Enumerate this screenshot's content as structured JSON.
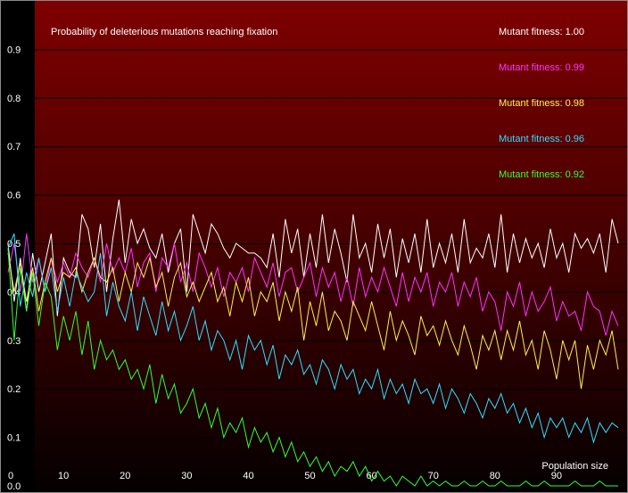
{
  "chart_data": {
    "type": "line",
    "title": "Probability of deleterious mutations reaching fixation",
    "xlabel": "Population size",
    "ylabel": "",
    "xlim": [
      1,
      100
    ],
    "ylim": [
      0,
      1
    ],
    "xticks": [
      "10",
      "20",
      "30",
      "40",
      "50",
      "60",
      "70",
      "80",
      "90"
    ],
    "xticks_values": [
      10,
      20,
      30,
      40,
      50,
      60,
      70,
      80,
      90
    ],
    "yticks": [
      "0.0",
      "0.1",
      "0.2",
      "0.3",
      "0.4",
      "0.5",
      "0.6",
      "0.7",
      "0.8",
      "0.9"
    ],
    "yticks_values": [
      0,
      0.1,
      0.2,
      0.3,
      0.4,
      0.5,
      0.6,
      0.7,
      0.8,
      0.9
    ],
    "x_origin_label": "0",
    "grid": true,
    "legend": "top-right",
    "x": [
      1,
      2,
      3,
      4,
      5,
      6,
      7,
      8,
      9,
      10,
      11,
      12,
      13,
      14,
      15,
      16,
      17,
      18,
      19,
      20,
      21,
      22,
      23,
      24,
      25,
      26,
      27,
      28,
      29,
      30,
      31,
      32,
      33,
      34,
      35,
      36,
      37,
      38,
      39,
      40,
      41,
      42,
      43,
      44,
      45,
      46,
      47,
      48,
      49,
      50,
      51,
      52,
      53,
      54,
      55,
      56,
      57,
      58,
      59,
      60,
      61,
      62,
      63,
      64,
      65,
      66,
      67,
      68,
      69,
      70,
      71,
      72,
      73,
      74,
      75,
      76,
      77,
      78,
      79,
      80,
      81,
      82,
      83,
      84,
      85,
      86,
      87,
      88,
      89,
      90,
      91,
      92,
      93,
      94,
      95,
      96,
      97,
      98,
      99,
      100
    ],
    "series": [
      {
        "name": "Mutant fitness: 1.00",
        "color": "#ffffff",
        "values": [
          0.5,
          0.38,
          0.47,
          0.36,
          0.48,
          0.4,
          0.46,
          0.52,
          0.35,
          0.47,
          0.44,
          0.43,
          0.56,
          0.53,
          0.45,
          0.54,
          0.4,
          0.51,
          0.59,
          0.46,
          0.55,
          0.5,
          0.53,
          0.49,
          0.47,
          0.52,
          0.44,
          0.5,
          0.53,
          0.4,
          0.56,
          0.52,
          0.48,
          0.54,
          0.52,
          0.49,
          0.47,
          0.5,
          0.49,
          0.48,
          0.48,
          0.47,
          0.45,
          0.52,
          0.43,
          0.55,
          0.48,
          0.53,
          0.43,
          0.52,
          0.45,
          0.56,
          0.46,
          0.53,
          0.48,
          0.42,
          0.56,
          0.47,
          0.5,
          0.44,
          0.54,
          0.47,
          0.53,
          0.43,
          0.51,
          0.46,
          0.52,
          0.44,
          0.55,
          0.45,
          0.5,
          0.46,
          0.52,
          0.44,
          0.55,
          0.46,
          0.49,
          0.47,
          0.52,
          0.45,
          0.56,
          0.44,
          0.52,
          0.46,
          0.51,
          0.47,
          0.5,
          0.45,
          0.53,
          0.47,
          0.5,
          0.44,
          0.52,
          0.49,
          0.51,
          0.48,
          0.52,
          0.44,
          0.55,
          0.5
        ]
      },
      {
        "name": "Mutant fitness: 0.99",
        "color": "#ff33ff",
        "values": [
          0.44,
          0.5,
          0.4,
          0.52,
          0.42,
          0.47,
          0.4,
          0.47,
          0.42,
          0.46,
          0.43,
          0.48,
          0.45,
          0.43,
          0.47,
          0.42,
          0.5,
          0.44,
          0.47,
          0.44,
          0.49,
          0.41,
          0.46,
          0.48,
          0.4,
          0.47,
          0.45,
          0.5,
          0.42,
          0.46,
          0.4,
          0.48,
          0.45,
          0.41,
          0.45,
          0.39,
          0.44,
          0.42,
          0.45,
          0.4,
          0.47,
          0.44,
          0.41,
          0.46,
          0.39,
          0.44,
          0.45,
          0.4,
          0.43,
          0.46,
          0.39,
          0.45,
          0.41,
          0.44,
          0.38,
          0.43,
          0.37,
          0.45,
          0.39,
          0.43,
          0.4,
          0.45,
          0.41,
          0.37,
          0.44,
          0.38,
          0.43,
          0.4,
          0.44,
          0.37,
          0.42,
          0.4,
          0.44,
          0.37,
          0.42,
          0.39,
          0.43,
          0.36,
          0.4,
          0.38,
          0.32,
          0.4,
          0.37,
          0.42,
          0.35,
          0.4,
          0.36,
          0.38,
          0.41,
          0.34,
          0.38,
          0.35,
          0.36,
          0.32,
          0.4,
          0.37,
          0.36,
          0.31,
          0.36,
          0.33
        ]
      },
      {
        "name": "Mutant fitness: 0.98",
        "color": "#ffee55",
        "values": [
          0.48,
          0.4,
          0.46,
          0.38,
          0.45,
          0.36,
          0.42,
          0.47,
          0.4,
          0.44,
          0.43,
          0.45,
          0.4,
          0.44,
          0.47,
          0.43,
          0.42,
          0.45,
          0.38,
          0.44,
          0.4,
          0.46,
          0.43,
          0.47,
          0.41,
          0.44,
          0.37,
          0.43,
          0.46,
          0.39,
          0.42,
          0.38,
          0.41,
          0.44,
          0.38,
          0.41,
          0.35,
          0.42,
          0.38,
          0.43,
          0.35,
          0.4,
          0.38,
          0.42,
          0.34,
          0.4,
          0.36,
          0.41,
          0.3,
          0.38,
          0.33,
          0.4,
          0.32,
          0.36,
          0.34,
          0.3,
          0.38,
          0.35,
          0.32,
          0.38,
          0.33,
          0.28,
          0.36,
          0.3,
          0.34,
          0.31,
          0.27,
          0.35,
          0.31,
          0.33,
          0.29,
          0.34,
          0.3,
          0.27,
          0.33,
          0.29,
          0.24,
          0.31,
          0.28,
          0.32,
          0.26,
          0.32,
          0.28,
          0.34,
          0.27,
          0.3,
          0.24,
          0.32,
          0.28,
          0.22,
          0.3,
          0.26,
          0.3,
          0.2,
          0.29,
          0.24,
          0.3,
          0.27,
          0.32,
          0.24
        ]
      },
      {
        "name": "Mutant fitness: 0.96",
        "color": "#33ddff",
        "values": [
          0.49,
          0.52,
          0.37,
          0.44,
          0.39,
          0.47,
          0.4,
          0.45,
          0.36,
          0.43,
          0.37,
          0.44,
          0.41,
          0.38,
          0.4,
          0.48,
          0.35,
          0.42,
          0.37,
          0.34,
          0.4,
          0.32,
          0.39,
          0.35,
          0.31,
          0.38,
          0.32,
          0.36,
          0.3,
          0.33,
          0.37,
          0.3,
          0.34,
          0.28,
          0.32,
          0.3,
          0.26,
          0.3,
          0.24,
          0.31,
          0.28,
          0.3,
          0.25,
          0.29,
          0.22,
          0.27,
          0.25,
          0.28,
          0.23,
          0.25,
          0.21,
          0.26,
          0.24,
          0.2,
          0.25,
          0.22,
          0.24,
          0.19,
          0.22,
          0.2,
          0.24,
          0.18,
          0.22,
          0.19,
          0.21,
          0.17,
          0.22,
          0.19,
          0.2,
          0.17,
          0.21,
          0.16,
          0.2,
          0.18,
          0.15,
          0.19,
          0.17,
          0.14,
          0.18,
          0.16,
          0.19,
          0.15,
          0.17,
          0.13,
          0.16,
          0.12,
          0.15,
          0.1,
          0.14,
          0.12,
          0.14,
          0.1,
          0.13,
          0.11,
          0.14,
          0.09,
          0.13,
          0.11,
          0.13,
          0.12
        ]
      },
      {
        "name": "Mutant fitness: 0.92",
        "color": "#33ff33",
        "values": [
          0.49,
          0.3,
          0.45,
          0.36,
          0.44,
          0.33,
          0.42,
          0.39,
          0.28,
          0.35,
          0.3,
          0.36,
          0.27,
          0.34,
          0.24,
          0.3,
          0.26,
          0.28,
          0.24,
          0.26,
          0.22,
          0.24,
          0.2,
          0.25,
          0.17,
          0.23,
          0.18,
          0.21,
          0.15,
          0.17,
          0.2,
          0.14,
          0.17,
          0.12,
          0.16,
          0.1,
          0.13,
          0.11,
          0.14,
          0.08,
          0.12,
          0.09,
          0.11,
          0.07,
          0.1,
          0.06,
          0.09,
          0.05,
          0.07,
          0.04,
          0.06,
          0.03,
          0.05,
          0.02,
          0.04,
          0.03,
          0.05,
          0.02,
          0.04,
          0.01,
          0.03,
          0.01,
          0.02,
          0.0,
          0.02,
          0.01,
          0.0,
          0.02,
          0.0,
          0.01,
          0.0,
          0.01,
          0.0,
          0.0,
          0.01,
          0.0,
          0.0,
          0.01,
          0.0,
          0.0,
          0.01,
          0.0,
          0.0,
          0.0,
          0.01,
          0.0,
          0.0,
          0.01,
          0.0,
          0.0,
          0.0,
          0.0,
          0.01,
          0.0,
          0.0,
          0.0,
          0.01,
          0.0,
          0.0,
          0.0
        ]
      }
    ]
  }
}
